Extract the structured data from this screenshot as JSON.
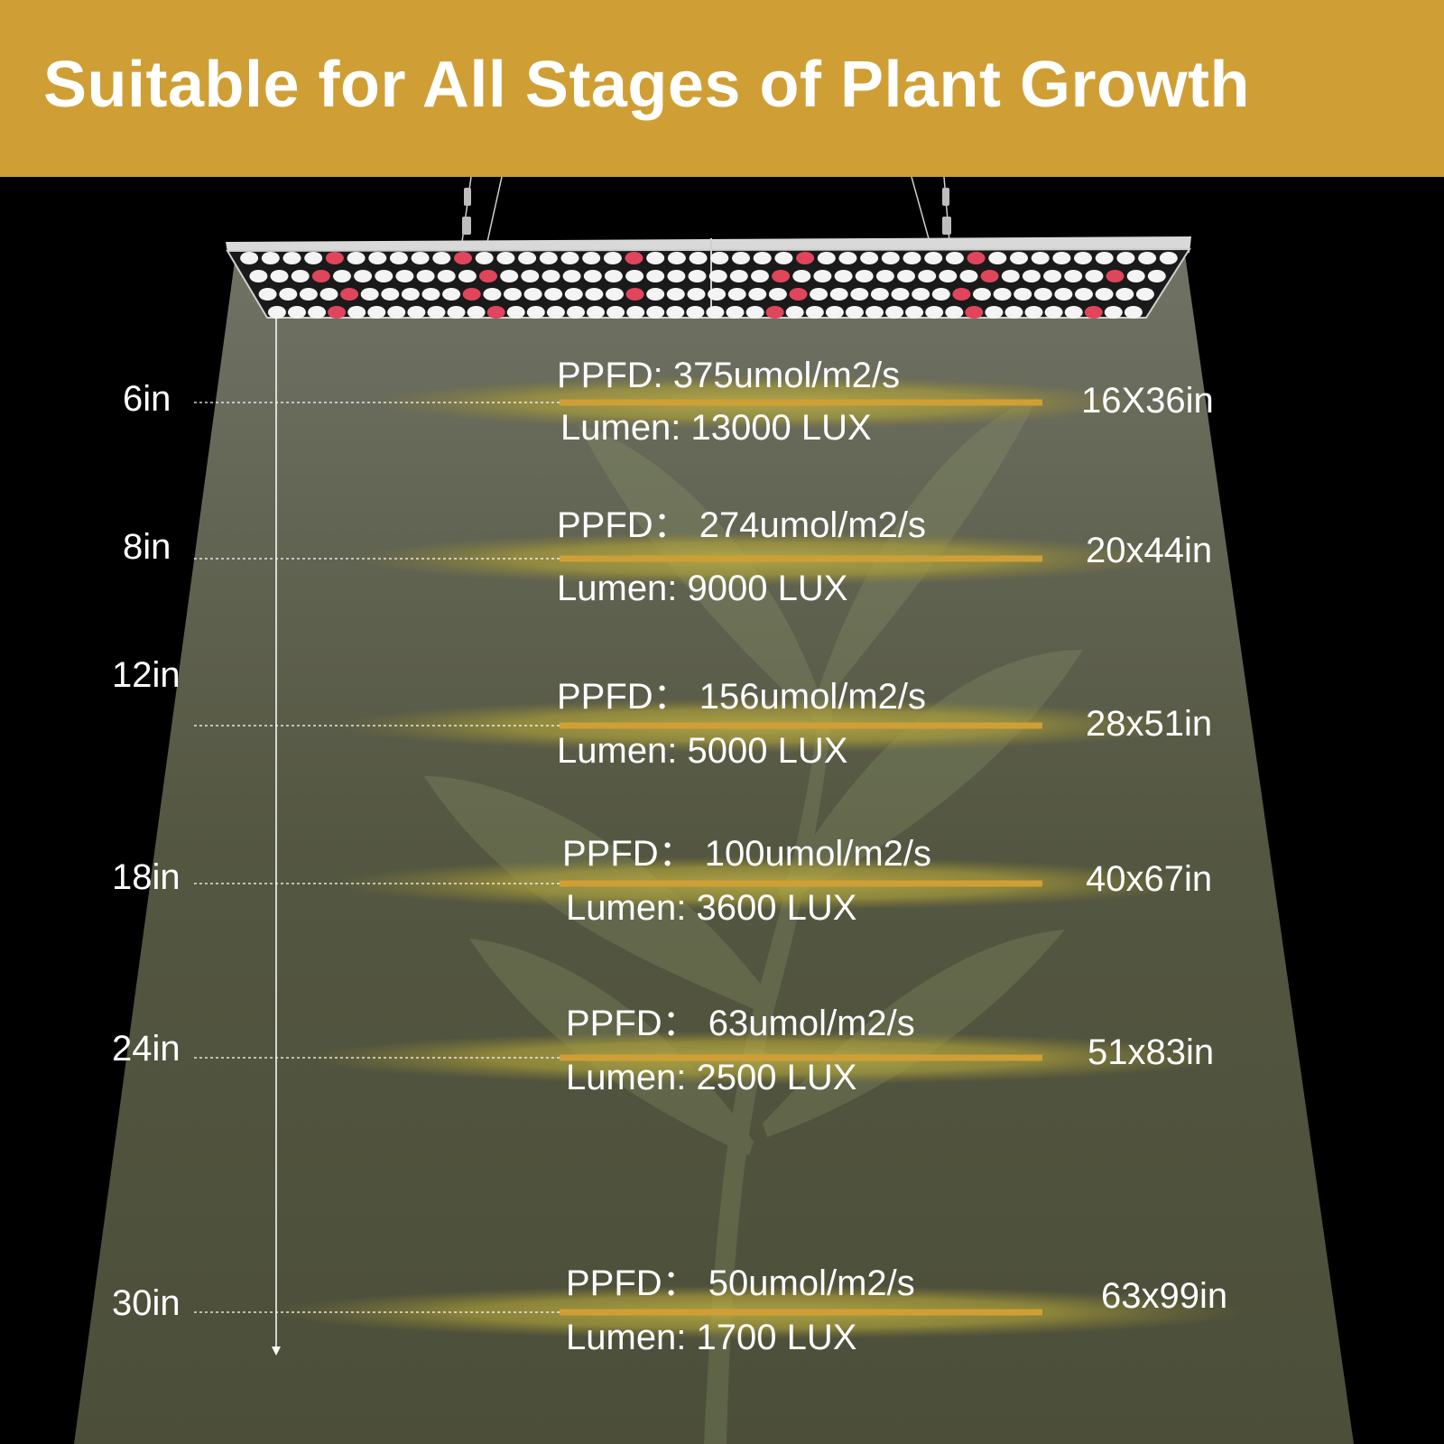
{
  "banner": {
    "title": "Suitable for All Stages of Plant Growth",
    "bg_color": "#cf9f36"
  },
  "colors": {
    "accent_line": "#cf9f36",
    "ellipse": "#b3a53a",
    "beam": "#6b6e58",
    "led_white": "#f4f4f4",
    "led_red": "#e0455c"
  },
  "levels": [
    {
      "distance": "6in",
      "ppfd": "PPFD: 375umol/m2/s",
      "lumen": "Lumen: 13000 LUX",
      "coverage": "16X36in"
    },
    {
      "distance": "8in",
      "ppfd": "PPFD：  274umol/m2/s",
      "lumen": "Lumen: 9000 LUX",
      "coverage": "20x44in"
    },
    {
      "distance": "12in",
      "ppfd": "PPFD：  156umol/m2/s",
      "lumen": "Lumen: 5000 LUX",
      "coverage": "28x51in"
    },
    {
      "distance": "18in",
      "ppfd": "PPFD：  100umol/m2/s",
      "lumen": "Lumen: 3600 LUX",
      "coverage": "40x67in"
    },
    {
      "distance": "24in",
      "ppfd": "PPFD：  63umol/m2/s",
      "lumen": "Lumen: 2500 LUX",
      "coverage": "51x83in"
    },
    {
      "distance": "30in",
      "ppfd": "PPFD：  50umol/m2/s",
      "lumen": "Lumen: 1700 LUX",
      "coverage": "63x99in"
    }
  ]
}
